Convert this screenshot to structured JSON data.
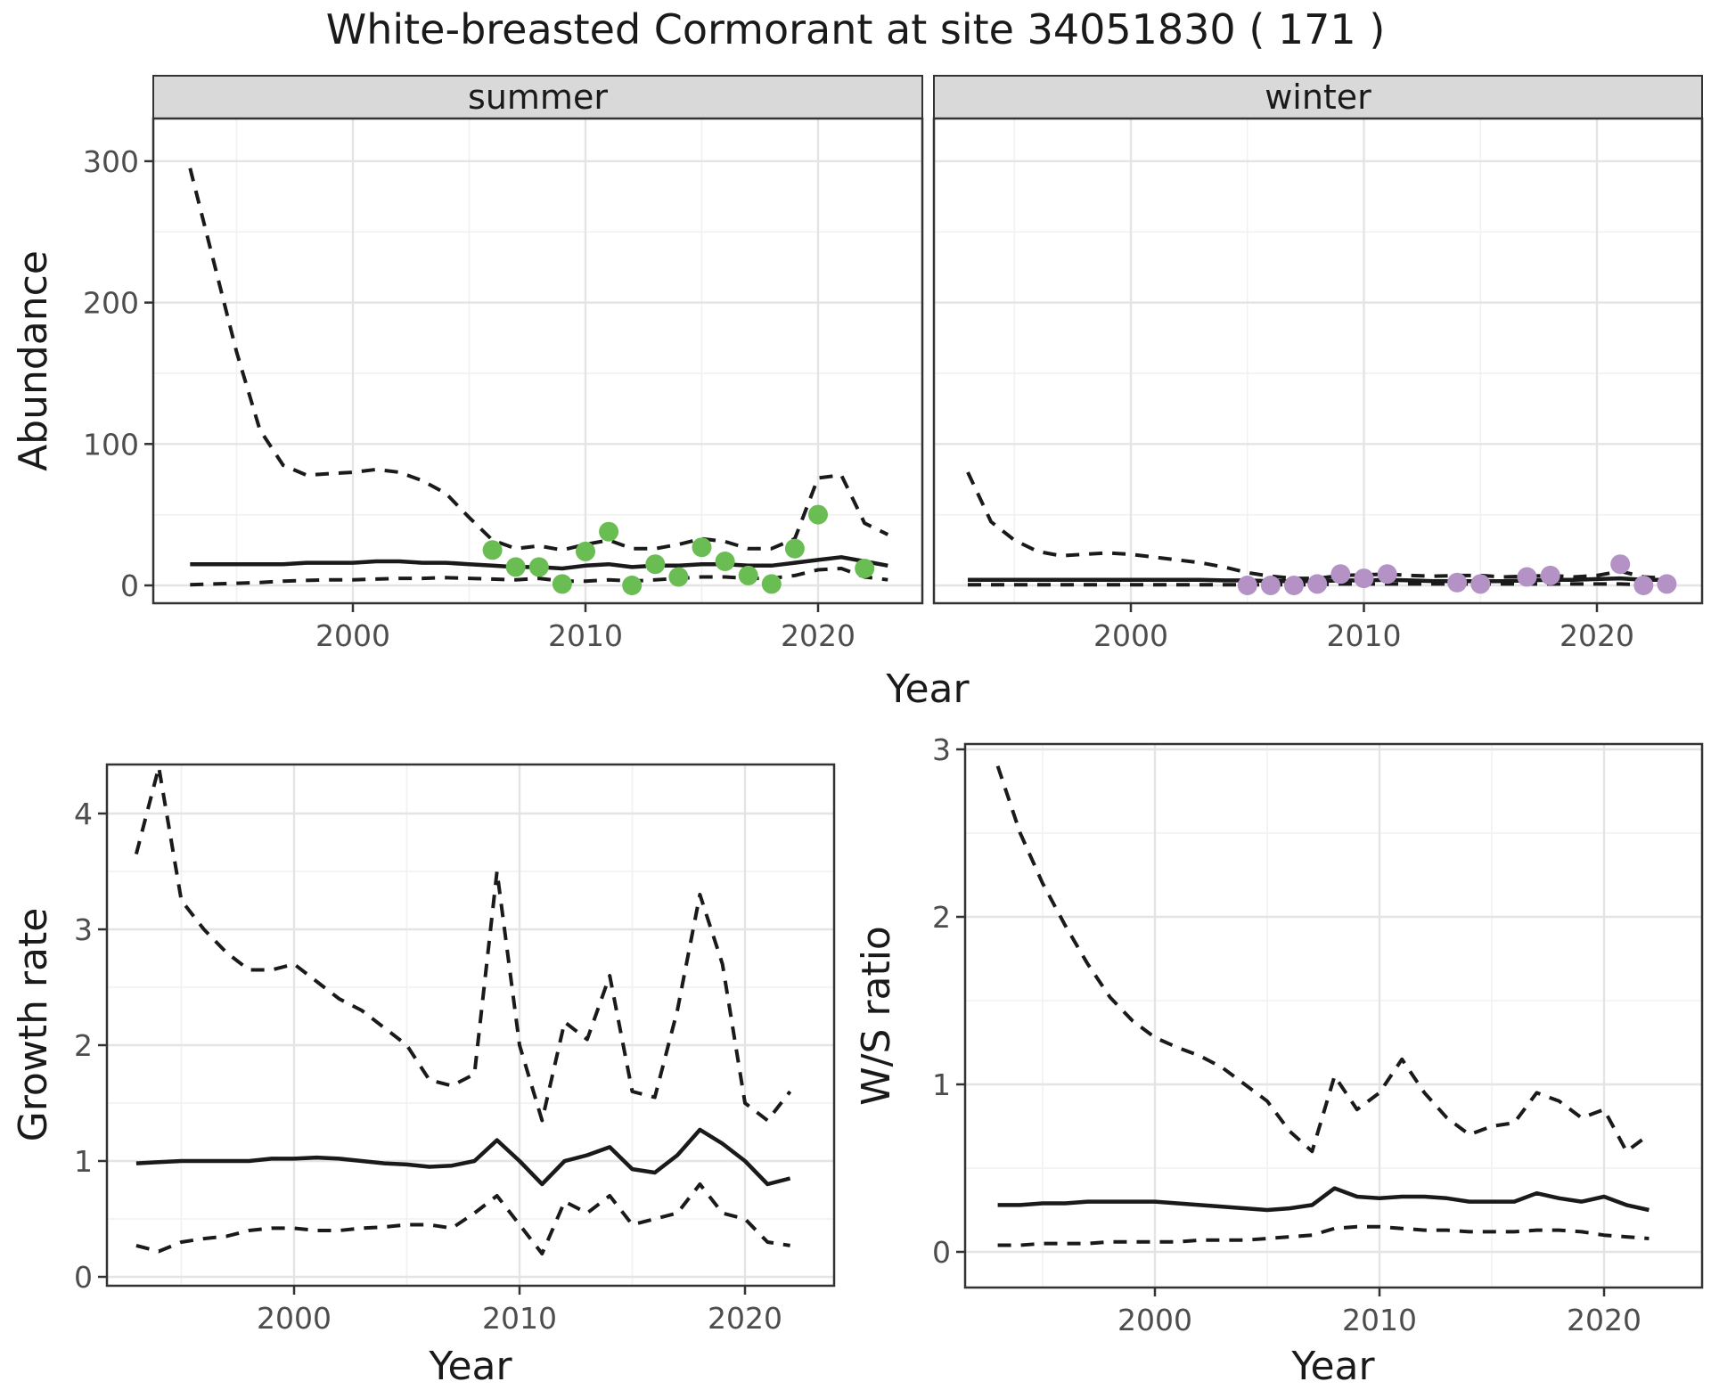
{
  "title": "White-breasted Cormorant at site 34051830 ( 171 )",
  "axis_labels": {
    "x": "Year",
    "abundance": "Abundance",
    "growth": "Growth rate",
    "ws": "W/S ratio"
  },
  "colors": {
    "summer_point": "#6abd52",
    "winter_point": "#b592c6",
    "line": "#1a1a1a",
    "strip_fill": "#d9d9d9",
    "panel_border": "#333333",
    "grid_major": "#e4e4e4",
    "grid_minor": "#f1f1f1",
    "tick_text": "#4d4d4d",
    "title_text": "#1a1a1a"
  },
  "chart_data": [
    {
      "id": "abundance-summer",
      "type": "line",
      "facet_label": "summer",
      "ylabel": "Abundance",
      "xlabel": "Year",
      "xticks": [
        2000,
        2010,
        2020
      ],
      "xminor": [
        1995,
        2005,
        2015
      ],
      "yticks": [
        0,
        100,
        200,
        300
      ],
      "yminor": [
        50,
        150,
        250
      ],
      "ylim": [
        -12,
        330
      ],
      "xlim": [
        1991.5,
        2024.5
      ],
      "x": [
        1993,
        1994,
        1995,
        1996,
        1997,
        1998,
        1999,
        2000,
        2001,
        2002,
        2003,
        2004,
        2005,
        2006,
        2007,
        2008,
        2009,
        2010,
        2011,
        2012,
        2013,
        2014,
        2015,
        2016,
        2017,
        2018,
        2019,
        2020,
        2021,
        2022,
        2023
      ],
      "series": [
        {
          "name": "upper-ci",
          "style": "dashed",
          "values": [
            295,
            230,
            165,
            110,
            85,
            78,
            79,
            80,
            82,
            80,
            74,
            65,
            48,
            32,
            26,
            28,
            25,
            29,
            32,
            26,
            26,
            29,
            33,
            31,
            26,
            26,
            33,
            76,
            78,
            44,
            36
          ]
        },
        {
          "name": "median",
          "style": "solid",
          "values": [
            15,
            15,
            15,
            15,
            15,
            16,
            16,
            16,
            17,
            17,
            16,
            16,
            15,
            14,
            13,
            13,
            12,
            14,
            15,
            13,
            14,
            14,
            15,
            15,
            14,
            14,
            16,
            18,
            20,
            17,
            14
          ]
        },
        {
          "name": "lower-ci",
          "style": "dashed",
          "values": [
            0.5,
            1,
            1.5,
            2,
            3,
            3.5,
            4,
            4,
            4.5,
            5,
            5,
            5.5,
            5,
            4.5,
            4,
            5,
            3,
            3,
            4,
            3,
            4,
            5,
            6,
            6,
            5,
            5,
            7,
            11,
            12,
            6,
            4
          ]
        }
      ],
      "points": {
        "name": "summer-observations",
        "x": [
          2006,
          2007,
          2008,
          2009,
          2010,
          2011,
          2012,
          2013,
          2014,
          2015,
          2016,
          2017,
          2018,
          2019,
          2020,
          2022
        ],
        "y": [
          25,
          13,
          13,
          1,
          24,
          38,
          0,
          15,
          6,
          27,
          17,
          7,
          1,
          26,
          50,
          12
        ]
      }
    },
    {
      "id": "abundance-winter",
      "type": "line",
      "facet_label": "winter",
      "ylabel": "Abundance",
      "xlabel": "Year",
      "xticks": [
        2000,
        2010,
        2020
      ],
      "xminor": [
        1995,
        2005,
        2015
      ],
      "yticks": [
        0,
        100,
        200,
        300
      ],
      "yminor": [
        50,
        150,
        250
      ],
      "ylim": [
        -12,
        330
      ],
      "xlim": [
        1991.5,
        2024.5
      ],
      "x": [
        1993,
        1994,
        1995,
        1996,
        1997,
        1998,
        1999,
        2000,
        2001,
        2002,
        2003,
        2004,
        2005,
        2006,
        2007,
        2008,
        2009,
        2010,
        2011,
        2012,
        2013,
        2014,
        2015,
        2016,
        2017,
        2018,
        2019,
        2020,
        2021,
        2022,
        2023
      ],
      "series": [
        {
          "name": "upper-ci",
          "style": "dashed",
          "values": [
            80,
            45,
            32,
            24,
            21,
            22,
            23,
            22,
            20,
            18,
            16,
            13,
            9,
            6.5,
            5,
            5,
            7,
            7.5,
            8,
            7,
            6.5,
            7,
            7,
            6,
            6.5,
            7,
            6,
            7,
            10,
            6,
            5
          ]
        },
        {
          "name": "median",
          "style": "solid",
          "values": [
            4,
            4,
            4,
            4,
            4,
            4,
            4,
            4,
            4,
            4,
            4,
            3.5,
            3.5,
            3,
            3,
            3,
            3.5,
            3.5,
            4,
            3.5,
            3,
            3,
            3,
            3,
            3.5,
            4,
            4,
            4.5,
            5,
            4,
            4
          ]
        },
        {
          "name": "lower-ci",
          "style": "dashed",
          "values": [
            0.5,
            0.5,
            0.5,
            0.5,
            0.5,
            0.5,
            0.5,
            0.5,
            0.5,
            0.5,
            0.5,
            0.5,
            0.5,
            0.5,
            0.5,
            0.5,
            1,
            1,
            1,
            1,
            1,
            1,
            1,
            1,
            1,
            1,
            1,
            1,
            1,
            0.5,
            0.5
          ]
        }
      ],
      "points": {
        "name": "winter-observations",
        "x": [
          2005,
          2006,
          2007,
          2008,
          2009,
          2010,
          2011,
          2014,
          2015,
          2017,
          2018,
          2021,
          2022,
          2023
        ],
        "y": [
          0,
          0,
          0,
          1,
          8,
          5,
          8,
          2,
          1,
          6,
          7,
          15,
          0,
          1
        ]
      }
    },
    {
      "id": "growth-rate",
      "type": "line",
      "facet_label": "",
      "ylabel": "Growth rate",
      "xlabel": "Year",
      "xticks": [
        2000,
        2010,
        2020
      ],
      "xminor": [
        1995,
        2005,
        2015
      ],
      "yticks": [
        0,
        1,
        2,
        3,
        4
      ],
      "yminor": [
        0.5,
        1.5,
        2.5,
        3.5
      ],
      "ylim": [
        -0.05,
        4.42
      ],
      "xlim": [
        1991.7,
        2023.3
      ],
      "x": [
        1993,
        1994,
        1995,
        1996,
        1997,
        1998,
        1999,
        2000,
        2001,
        2002,
        2003,
        2004,
        2005,
        2006,
        2007,
        2008,
        2009,
        2010,
        2011,
        2012,
        2013,
        2014,
        2015,
        2016,
        2017,
        2018,
        2019,
        2020,
        2021,
        2022
      ],
      "series": [
        {
          "name": "upper-ci",
          "style": "dashed",
          "values": [
            3.65,
            4.4,
            3.25,
            3.0,
            2.8,
            2.65,
            2.65,
            2.7,
            2.55,
            2.4,
            2.3,
            2.15,
            2.0,
            1.7,
            1.65,
            1.75,
            3.5,
            2.0,
            1.35,
            2.2,
            2.05,
            2.6,
            1.6,
            1.55,
            2.3,
            3.3,
            2.7,
            1.5,
            1.35,
            1.6
          ]
        },
        {
          "name": "median",
          "style": "solid",
          "values": [
            0.98,
            0.99,
            1.0,
            1.0,
            1.0,
            1.0,
            1.02,
            1.02,
            1.03,
            1.02,
            1.0,
            0.98,
            0.97,
            0.95,
            0.96,
            1.0,
            1.18,
            1.0,
            0.8,
            1.0,
            1.05,
            1.12,
            0.93,
            0.9,
            1.05,
            1.27,
            1.15,
            1.0,
            0.8,
            0.85
          ]
        },
        {
          "name": "lower-ci",
          "style": "dashed",
          "values": [
            0.27,
            0.22,
            0.3,
            0.33,
            0.35,
            0.4,
            0.42,
            0.42,
            0.4,
            0.4,
            0.42,
            0.43,
            0.45,
            0.45,
            0.42,
            0.55,
            0.7,
            0.45,
            0.2,
            0.65,
            0.55,
            0.7,
            0.45,
            0.5,
            0.55,
            0.8,
            0.55,
            0.5,
            0.3,
            0.27
          ]
        }
      ],
      "points": {
        "name": "none",
        "x": [],
        "y": []
      }
    },
    {
      "id": "ws-ratio",
      "type": "line",
      "facet_label": "",
      "ylabel": "W/S ratio",
      "xlabel": "Year",
      "xticks": [
        2000,
        2010,
        2020
      ],
      "xminor": [
        1995,
        2005,
        2015
      ],
      "yticks": [
        0,
        1,
        2,
        3
      ],
      "yminor": [
        0.5,
        1.5,
        2.5
      ],
      "ylim": [
        -0.1,
        3.05
      ],
      "xlim": [
        1991.7,
        2023.3
      ],
      "x": [
        1993,
        1994,
        1995,
        1996,
        1997,
        1998,
        1999,
        2000,
        2001,
        2002,
        2003,
        2004,
        2005,
        2006,
        2007,
        2008,
        2009,
        2010,
        2011,
        2012,
        2013,
        2014,
        2015,
        2016,
        2017,
        2018,
        2019,
        2020,
        2021,
        2022
      ],
      "series": [
        {
          "name": "upper-ci",
          "style": "dashed",
          "values": [
            2.9,
            2.5,
            2.2,
            1.95,
            1.72,
            1.52,
            1.38,
            1.28,
            1.22,
            1.17,
            1.1,
            1.0,
            0.9,
            0.72,
            0.6,
            1.05,
            0.85,
            0.95,
            1.15,
            0.95,
            0.8,
            0.7,
            0.75,
            0.77,
            0.95,
            0.9,
            0.8,
            0.85,
            0.6,
            0.7
          ]
        },
        {
          "name": "median",
          "style": "solid",
          "values": [
            0.28,
            0.28,
            0.29,
            0.29,
            0.3,
            0.3,
            0.3,
            0.3,
            0.29,
            0.28,
            0.27,
            0.26,
            0.25,
            0.26,
            0.28,
            0.38,
            0.33,
            0.32,
            0.33,
            0.33,
            0.32,
            0.3,
            0.3,
            0.3,
            0.35,
            0.32,
            0.3,
            0.33,
            0.28,
            0.25
          ]
        },
        {
          "name": "lower-ci",
          "style": "dashed",
          "values": [
            0.04,
            0.04,
            0.05,
            0.05,
            0.05,
            0.06,
            0.06,
            0.06,
            0.06,
            0.07,
            0.07,
            0.07,
            0.08,
            0.09,
            0.1,
            0.14,
            0.15,
            0.15,
            0.14,
            0.13,
            0.13,
            0.12,
            0.12,
            0.12,
            0.13,
            0.13,
            0.12,
            0.1,
            0.09,
            0.08
          ]
        }
      ],
      "points": {
        "name": "none",
        "x": [],
        "y": []
      }
    }
  ]
}
